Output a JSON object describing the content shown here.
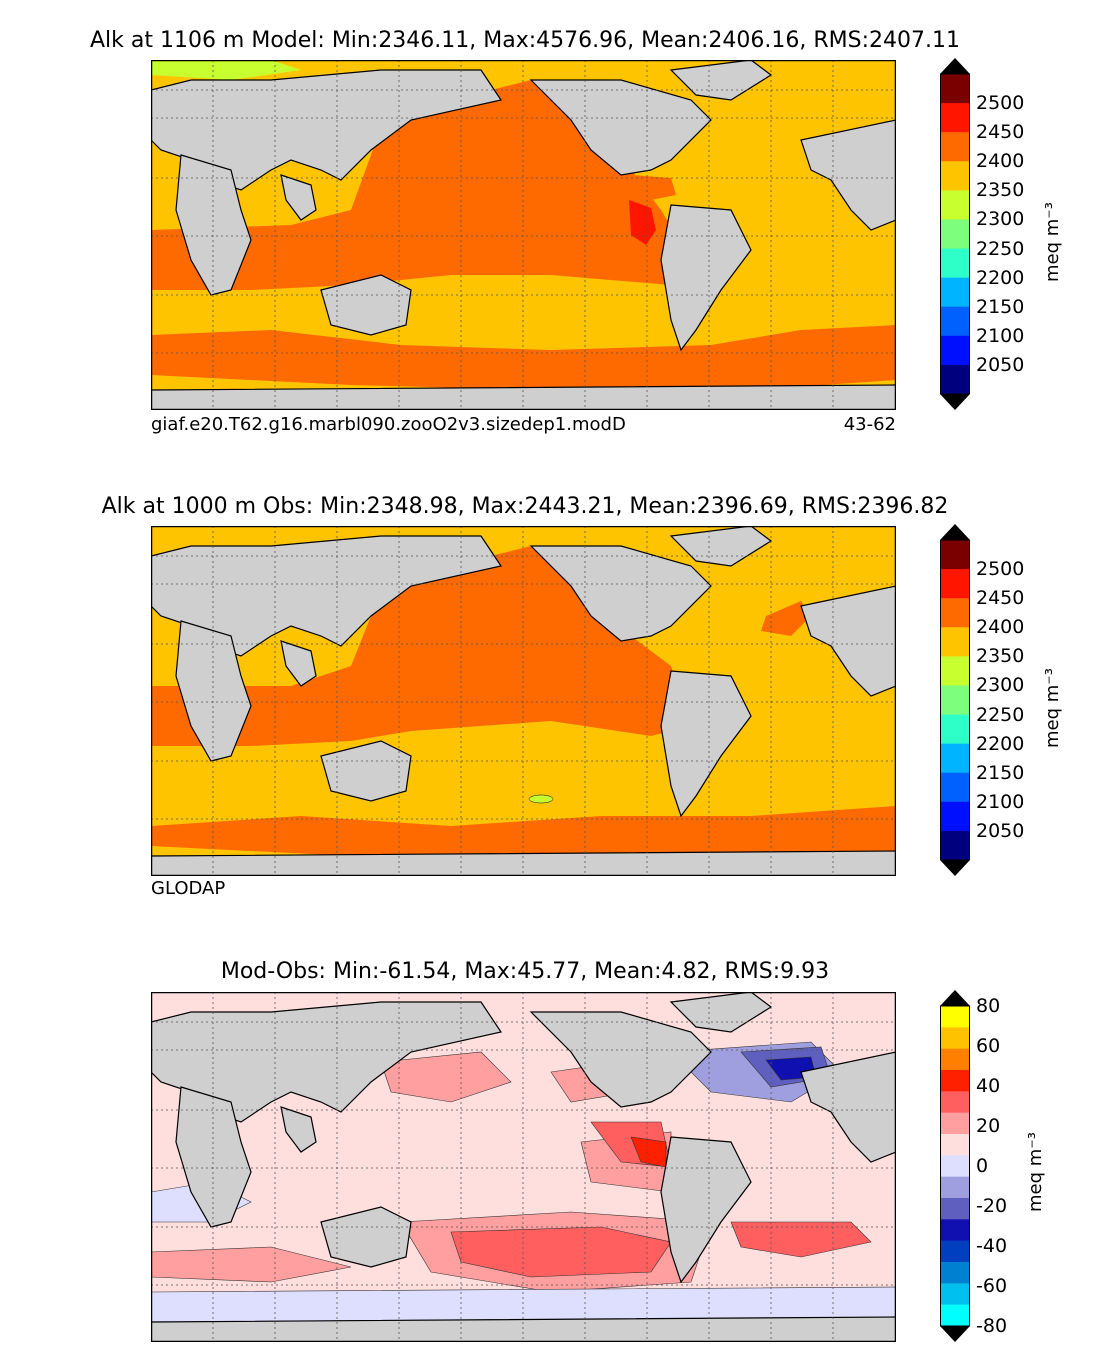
{
  "panels": [
    {
      "title": "Alk at 1106 m Model: Min:2346.11, Max:4576.96, Mean:2406.16, RMS:2407.11",
      "caption_left": "giaf.e20.T62.g16.marbl090.zooO2v3.sizedep1.modD",
      "caption_right": "43-62",
      "colorbar": {
        "unit": "meq m⁻³",
        "ticks": [
          "2500",
          "2450",
          "2400",
          "2350",
          "2300",
          "2250",
          "2200",
          "2150",
          "2100",
          "2050"
        ],
        "colors": [
          "#7a0000",
          "#ff1500",
          "#ff6a00",
          "#ffc400",
          "#c8ff2e",
          "#7dff7d",
          "#2effc8",
          "#00b4ff",
          "#0061ff",
          "#0010ff",
          "#00007f"
        ]
      }
    },
    {
      "title": "Alk at 1000 m Obs: Min:2348.98, Max:2443.21, Mean:2396.69, RMS:2396.82",
      "caption_left": "GLODAP",
      "caption_right": "",
      "colorbar": {
        "unit": "meq m⁻³",
        "ticks": [
          "2500",
          "2450",
          "2400",
          "2350",
          "2300",
          "2250",
          "2200",
          "2150",
          "2100",
          "2050"
        ],
        "colors": [
          "#7a0000",
          "#ff1500",
          "#ff6a00",
          "#ffc400",
          "#c8ff2e",
          "#7dff7d",
          "#2effc8",
          "#00b4ff",
          "#0061ff",
          "#0010ff",
          "#00007f"
        ]
      }
    },
    {
      "title": "Mod-Obs: Min:-61.54, Max:45.77, Mean:4.82, RMS:9.93",
      "caption_left": "",
      "caption_right": "",
      "colorbar": {
        "unit": "meq m⁻³",
        "ticks": [
          "80",
          "60",
          "40",
          "20",
          "0",
          "-20",
          "-40",
          "-60",
          "-80"
        ],
        "colors": [
          "#ffff00",
          "#ffc200",
          "#ff8000",
          "#ff2000",
          "#ff5f5f",
          "#ff9f9f",
          "#ffdede",
          "#dedeff",
          "#9f9fdf",
          "#5f5fbf",
          "#1010b0",
          "#0040c0",
          "#0080d0",
          "#00c0f0",
          "#00ffff"
        ]
      }
    }
  ],
  "colors": {
    "land": "#cfcfcf",
    "coast": "#000000",
    "nodata": "#ffffff",
    "grid": "#555555"
  }
}
